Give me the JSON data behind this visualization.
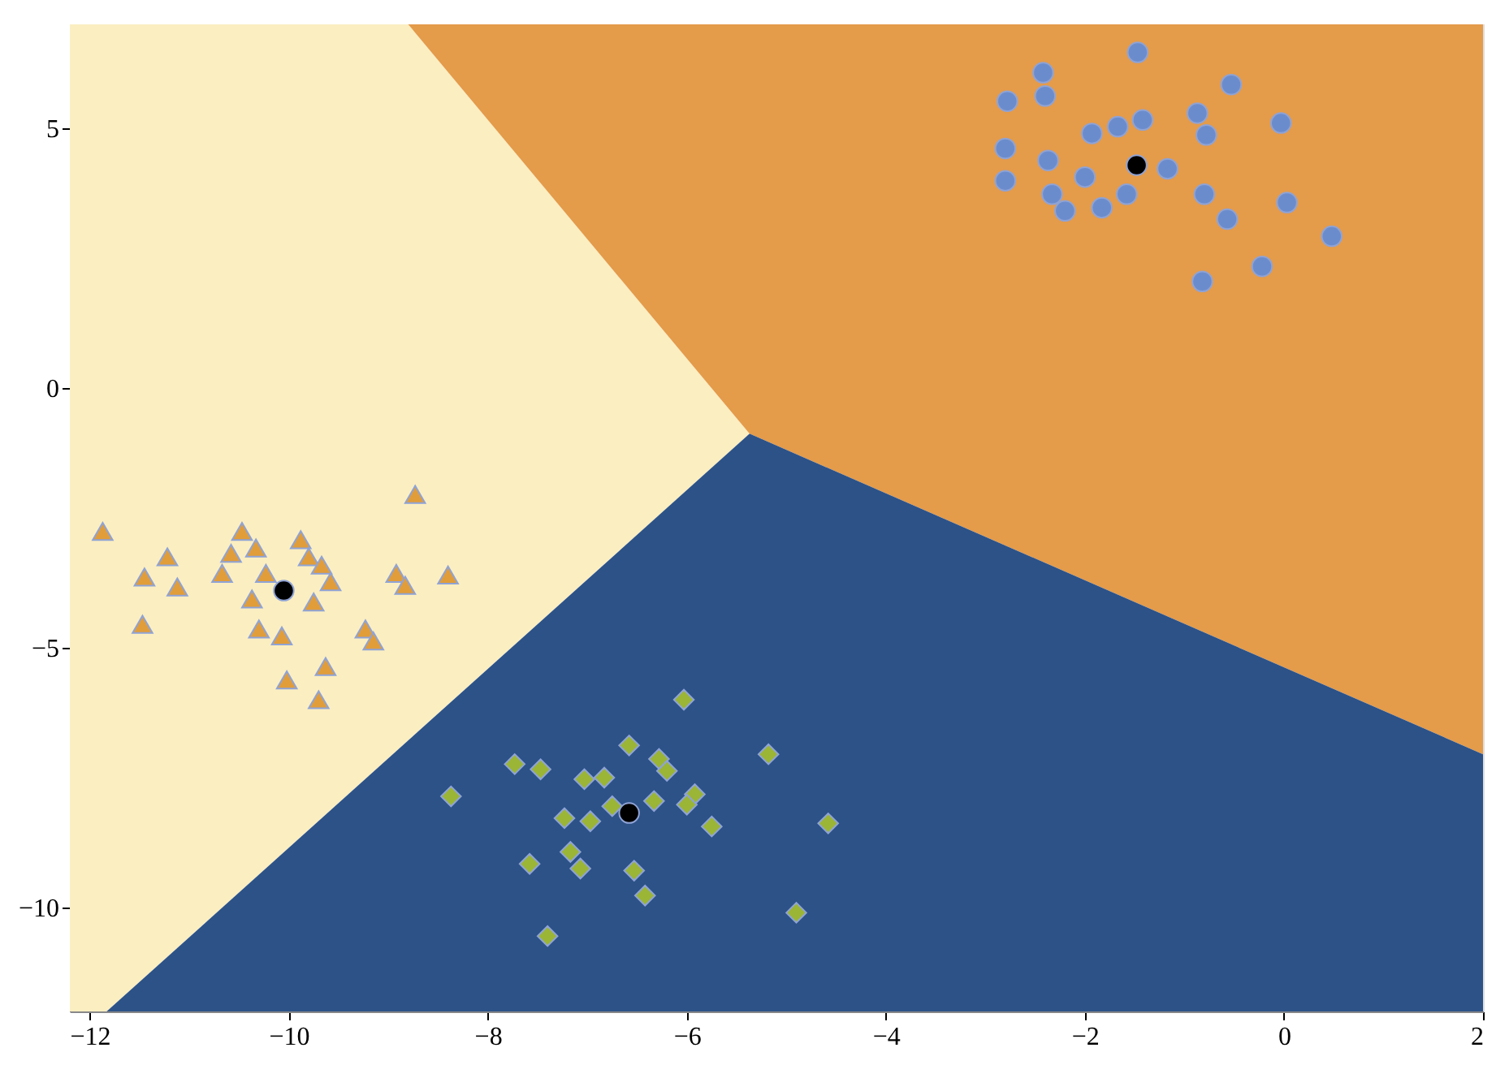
{
  "chart_data": {
    "type": "scatter",
    "xlim": [
      -12.2,
      2
    ],
    "ylim": [
      -12,
      7
    ],
    "xticks": [
      -12,
      -10,
      -8,
      -6,
      -4,
      -2,
      0,
      2
    ],
    "yticks": [
      -10,
      -5,
      0,
      5
    ],
    "series": [
      {
        "marker": "triangle",
        "color": "#e09d3a",
        "x": [
          -11.87,
          -8.73,
          -11.45,
          -11.22,
          -11.12,
          -11.47,
          -10.67,
          -10.58,
          -10.47,
          -10.33,
          -10.23,
          -9.88,
          -9.8,
          -9.67,
          -9.58,
          -10.37,
          -10.3,
          -10.07,
          -10.02,
          -9.63,
          -9.7,
          -9.23,
          -9.15,
          -8.92,
          -8.83,
          -8.4,
          -9.75
        ],
        "values": [
          -2.76,
          -2.05,
          -3.64,
          -3.25,
          -3.83,
          -4.55,
          -3.57,
          -3.18,
          -2.76,
          -3.08,
          -3.57,
          -2.92,
          -3.25,
          -3.41,
          -3.73,
          -4.06,
          -4.64,
          -4.77,
          -5.62,
          -5.36,
          -6.0,
          -4.64,
          -4.87,
          -3.57,
          -3.8,
          -3.6,
          -4.12
        ]
      },
      {
        "marker": "diamond",
        "color": "#9bb536",
        "x": [
          -6.03,
          -6.58,
          -5.18,
          -7.73,
          -7.47,
          -7.03,
          -6.83,
          -6.28,
          -6.2,
          -5.92,
          -8.37,
          -7.23,
          -6.97,
          -6.75,
          -6.33,
          -6.0,
          -5.75,
          -4.58,
          -7.58,
          -7.07,
          -6.53,
          -6.42,
          -7.4,
          -4.9,
          -7.17
        ],
        "values": [
          -6.0,
          -6.88,
          -7.05,
          -7.24,
          -7.34,
          -7.53,
          -7.5,
          -7.14,
          -7.37,
          -7.82,
          -7.86,
          -8.28,
          -8.34,
          -8.05,
          -7.95,
          -8.02,
          -8.44,
          -8.38,
          -9.16,
          -9.25,
          -9.29,
          -9.77,
          -10.55,
          -10.1,
          -8.93
        ]
      },
      {
        "marker": "circle",
        "color": "#6b8ccc",
        "x": [
          -1.47,
          -2.42,
          -2.4,
          -2.78,
          -0.53,
          -0.03,
          -0.87,
          -0.78,
          -2.8,
          -2.8,
          -2.37,
          -2.33,
          -1.93,
          -1.67,
          -1.42,
          -2.0,
          -2.2,
          -1.83,
          -1.58,
          -1.17,
          -0.8,
          -0.57,
          0.03,
          0.48,
          -0.22,
          -0.82
        ],
        "values": [
          6.46,
          6.07,
          5.62,
          5.52,
          5.84,
          5.1,
          5.29,
          4.87,
          4.61,
          3.99,
          4.38,
          3.73,
          4.9,
          5.03,
          5.16,
          4.06,
          3.41,
          3.47,
          3.73,
          4.22,
          3.73,
          3.25,
          3.57,
          2.92,
          2.34,
          2.05
        ]
      },
      {
        "marker": "circle",
        "color": "#000000",
        "x": [
          -10.05,
          -6.58,
          -1.48
        ],
        "values": [
          -3.9,
          -8.18,
          4.29
        ]
      }
    ]
  }
}
